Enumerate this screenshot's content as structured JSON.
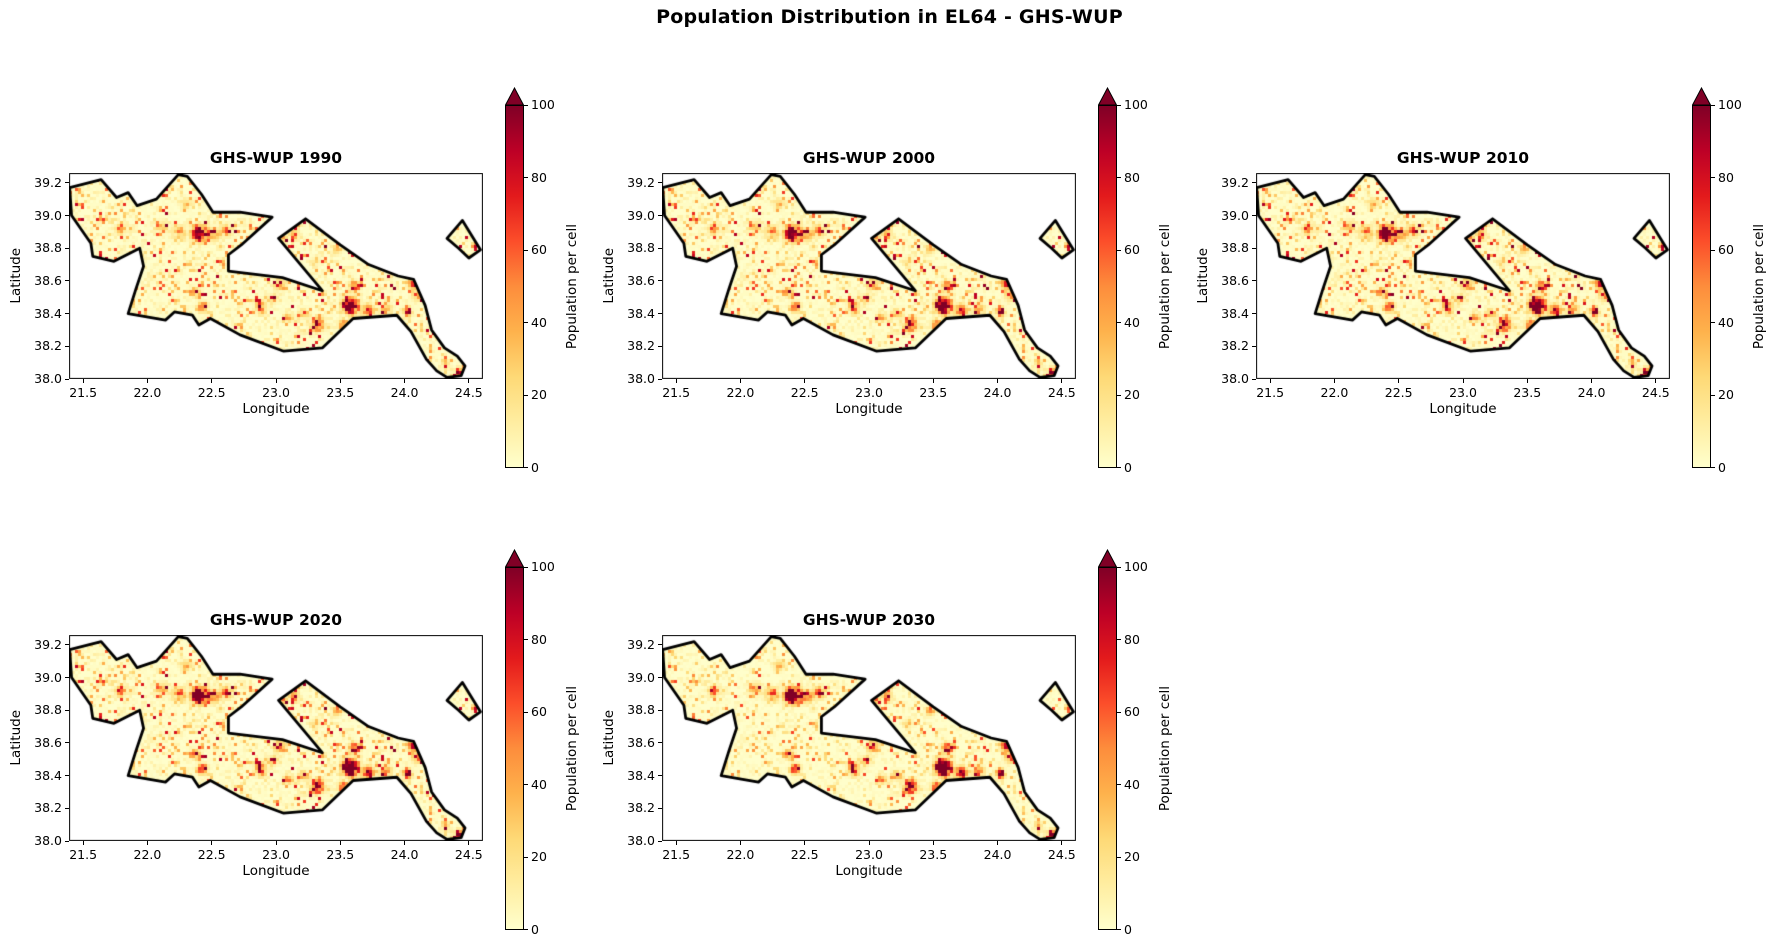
{
  "figure": {
    "title": "Population Distribution in EL64 - GHS-WUP"
  },
  "axes": {
    "xlabel": "Longitude",
    "ylabel": "Latitude",
    "xticks": [
      "21.5",
      "22.0",
      "22.5",
      "23.0",
      "23.5",
      "24.0",
      "24.5"
    ],
    "yticks": [
      "39.2",
      "39.0",
      "38.8",
      "38.6",
      "38.4",
      "38.2",
      "38.0"
    ],
    "xlim": [
      21.39,
      24.61
    ],
    "ylim": [
      38.0,
      39.26
    ]
  },
  "colorbar": {
    "label": "Population per cell",
    "ticks": [
      "100",
      "80",
      "60",
      "40",
      "20",
      "0"
    ],
    "vmin": 0,
    "vmax": 100,
    "extend": "max",
    "colormap": "YlOrRd",
    "arrow_color": "#800026",
    "stops": [
      "#ffffcc",
      "#ffeda0",
      "#fed976",
      "#feb24c",
      "#fd8d3c",
      "#fc4e2a",
      "#e31a1c",
      "#bd0026",
      "#800026"
    ]
  },
  "subplots": [
    {
      "id": "1990",
      "title": "GHS-WUP 1990",
      "year": 1990
    },
    {
      "id": "2000",
      "title": "GHS-WUP 2000",
      "year": 2000
    },
    {
      "id": "2010",
      "title": "GHS-WUP 2010",
      "year": 2010
    },
    {
      "id": "2020",
      "title": "GHS-WUP 2020",
      "year": 2020
    },
    {
      "id": "2030",
      "title": "GHS-WUP 2030",
      "year": 2030
    }
  ],
  "chart_data": {
    "type": "heatmap",
    "subtype": "geographic-population-raster",
    "title": "Population Distribution in EL64 - GHS-WUP",
    "region_code": "EL64",
    "dataset": "GHS-WUP",
    "years": [
      1990,
      2000,
      2010,
      2020,
      2030
    ],
    "panels": [
      "GHS-WUP 1990",
      "GHS-WUP 2000",
      "GHS-WUP 2010",
      "GHS-WUP 2020",
      "GHS-WUP 2030"
    ],
    "xlabel": "Longitude",
    "ylabel": "Latitude",
    "xlim": [
      21.39,
      24.61
    ],
    "ylim": [
      38.0,
      39.26
    ],
    "xticks": [
      21.5,
      22.0,
      22.5,
      23.0,
      23.5,
      24.0,
      24.5
    ],
    "yticks": [
      38.0,
      38.2,
      38.4,
      38.6,
      38.8,
      39.0,
      39.2
    ],
    "colorbar_label": "Population per cell",
    "value_range": [
      0,
      100
    ],
    "colormap": "YlOrRd",
    "extend": "max",
    "base_fill": "#fffecb",
    "outline_color": "#000000",
    "boundary": [
      [
        21.395,
        39.17
      ],
      [
        21.64,
        39.22
      ],
      [
        21.76,
        39.11
      ],
      [
        21.85,
        39.14
      ],
      [
        21.92,
        39.06
      ],
      [
        22.07,
        39.1
      ],
      [
        22.24,
        39.25
      ],
      [
        22.31,
        39.24
      ],
      [
        22.42,
        39.13
      ],
      [
        22.51,
        39.02
      ],
      [
        22.72,
        39.02
      ],
      [
        22.97,
        38.99
      ],
      [
        22.73,
        38.82
      ],
      [
        22.63,
        38.76
      ],
      [
        22.63,
        38.66
      ],
      [
        23.05,
        38.62
      ],
      [
        23.36,
        38.54
      ],
      [
        23.02,
        38.86
      ],
      [
        23.23,
        38.98
      ],
      [
        23.5,
        38.82
      ],
      [
        23.72,
        38.7
      ],
      [
        23.95,
        38.63
      ],
      [
        24.07,
        38.61
      ],
      [
        24.16,
        38.45
      ],
      [
        24.21,
        38.3
      ],
      [
        24.31,
        38.19
      ],
      [
        24.41,
        38.14
      ],
      [
        24.47,
        38.08
      ],
      [
        24.44,
        38.02
      ],
      [
        24.33,
        38.01
      ],
      [
        24.25,
        38.05
      ],
      [
        24.17,
        38.12
      ],
      [
        24.05,
        38.29
      ],
      [
        23.94,
        38.39
      ],
      [
        23.6,
        38.37
      ],
      [
        23.36,
        38.19
      ],
      [
        23.06,
        38.17
      ],
      [
        22.72,
        38.27
      ],
      [
        22.49,
        38.37
      ],
      [
        22.4,
        38.33
      ],
      [
        22.35,
        38.39
      ],
      [
        22.21,
        38.41
      ],
      [
        22.14,
        38.36
      ],
      [
        21.85,
        38.4
      ],
      [
        21.91,
        38.55
      ],
      [
        21.97,
        38.69
      ],
      [
        21.94,
        38.8
      ],
      [
        21.74,
        38.72
      ],
      [
        21.575,
        38.75
      ],
      [
        21.56,
        38.83
      ],
      [
        21.41,
        39.0
      ]
    ],
    "island": [
      [
        24.45,
        38.97
      ],
      [
        24.33,
        38.86
      ],
      [
        24.42,
        38.8
      ],
      [
        24.5,
        38.74
      ],
      [
        24.59,
        38.79
      ]
    ],
    "hotspots": [
      [
        22.41,
        38.89,
        200,
        4.5
      ],
      [
        22.25,
        38.9,
        50,
        4
      ],
      [
        22.12,
        38.93,
        40,
        3.5
      ],
      [
        22.62,
        38.91,
        55,
        3.5
      ],
      [
        22.52,
        38.88,
        40,
        4
      ],
      [
        21.795,
        38.915,
        70,
        3
      ],
      [
        22.3,
        39.07,
        30,
        3
      ],
      [
        23.03,
        38.58,
        50,
        3.5
      ],
      [
        22.78,
        38.78,
        40,
        3
      ],
      [
        22.38,
        38.53,
        45,
        3
      ],
      [
        22.425,
        38.44,
        70,
        3
      ],
      [
        22.88,
        38.44,
        90,
        3.5
      ],
      [
        22.98,
        38.49,
        45,
        3
      ],
      [
        23.1,
        38.38,
        40,
        3
      ],
      [
        23.32,
        38.33,
        110,
        3.8
      ],
      [
        23.22,
        38.4,
        55,
        3
      ],
      [
        23.52,
        38.33,
        55,
        3
      ],
      [
        23.58,
        38.45,
        230,
        4.5
      ],
      [
        23.61,
        38.56,
        80,
        3.5
      ],
      [
        23.63,
        38.36,
        70,
        3
      ],
      [
        23.72,
        38.42,
        70,
        3.5
      ],
      [
        23.85,
        38.42,
        55,
        3.5
      ],
      [
        24.02,
        38.41,
        70,
        3
      ],
      [
        24.1,
        38.52,
        60,
        3.5
      ],
      [
        24.05,
        38.58,
        45,
        3
      ],
      [
        24.42,
        38.04,
        80,
        2.8
      ],
      [
        24.32,
        38.08,
        35,
        2.5
      ],
      [
        23.14,
        38.88,
        50,
        3
      ],
      [
        23.06,
        38.86,
        45,
        2.8
      ],
      [
        23.3,
        38.72,
        35,
        2.5
      ],
      [
        23.48,
        38.8,
        40,
        2.8
      ]
    ],
    "panel_intensity": [
      {
        "year": 1990,
        "speckle": 1.0,
        "cluster": 0.85
      },
      {
        "year": 2000,
        "speckle": 1.02,
        "cluster": 0.95
      },
      {
        "year": 2010,
        "speckle": 1.05,
        "cluster": 1.05
      },
      {
        "year": 2020,
        "speckle": 1.0,
        "cluster": 1.18
      },
      {
        "year": 2030,
        "speckle": 0.72,
        "cluster": 1.28
      }
    ]
  }
}
